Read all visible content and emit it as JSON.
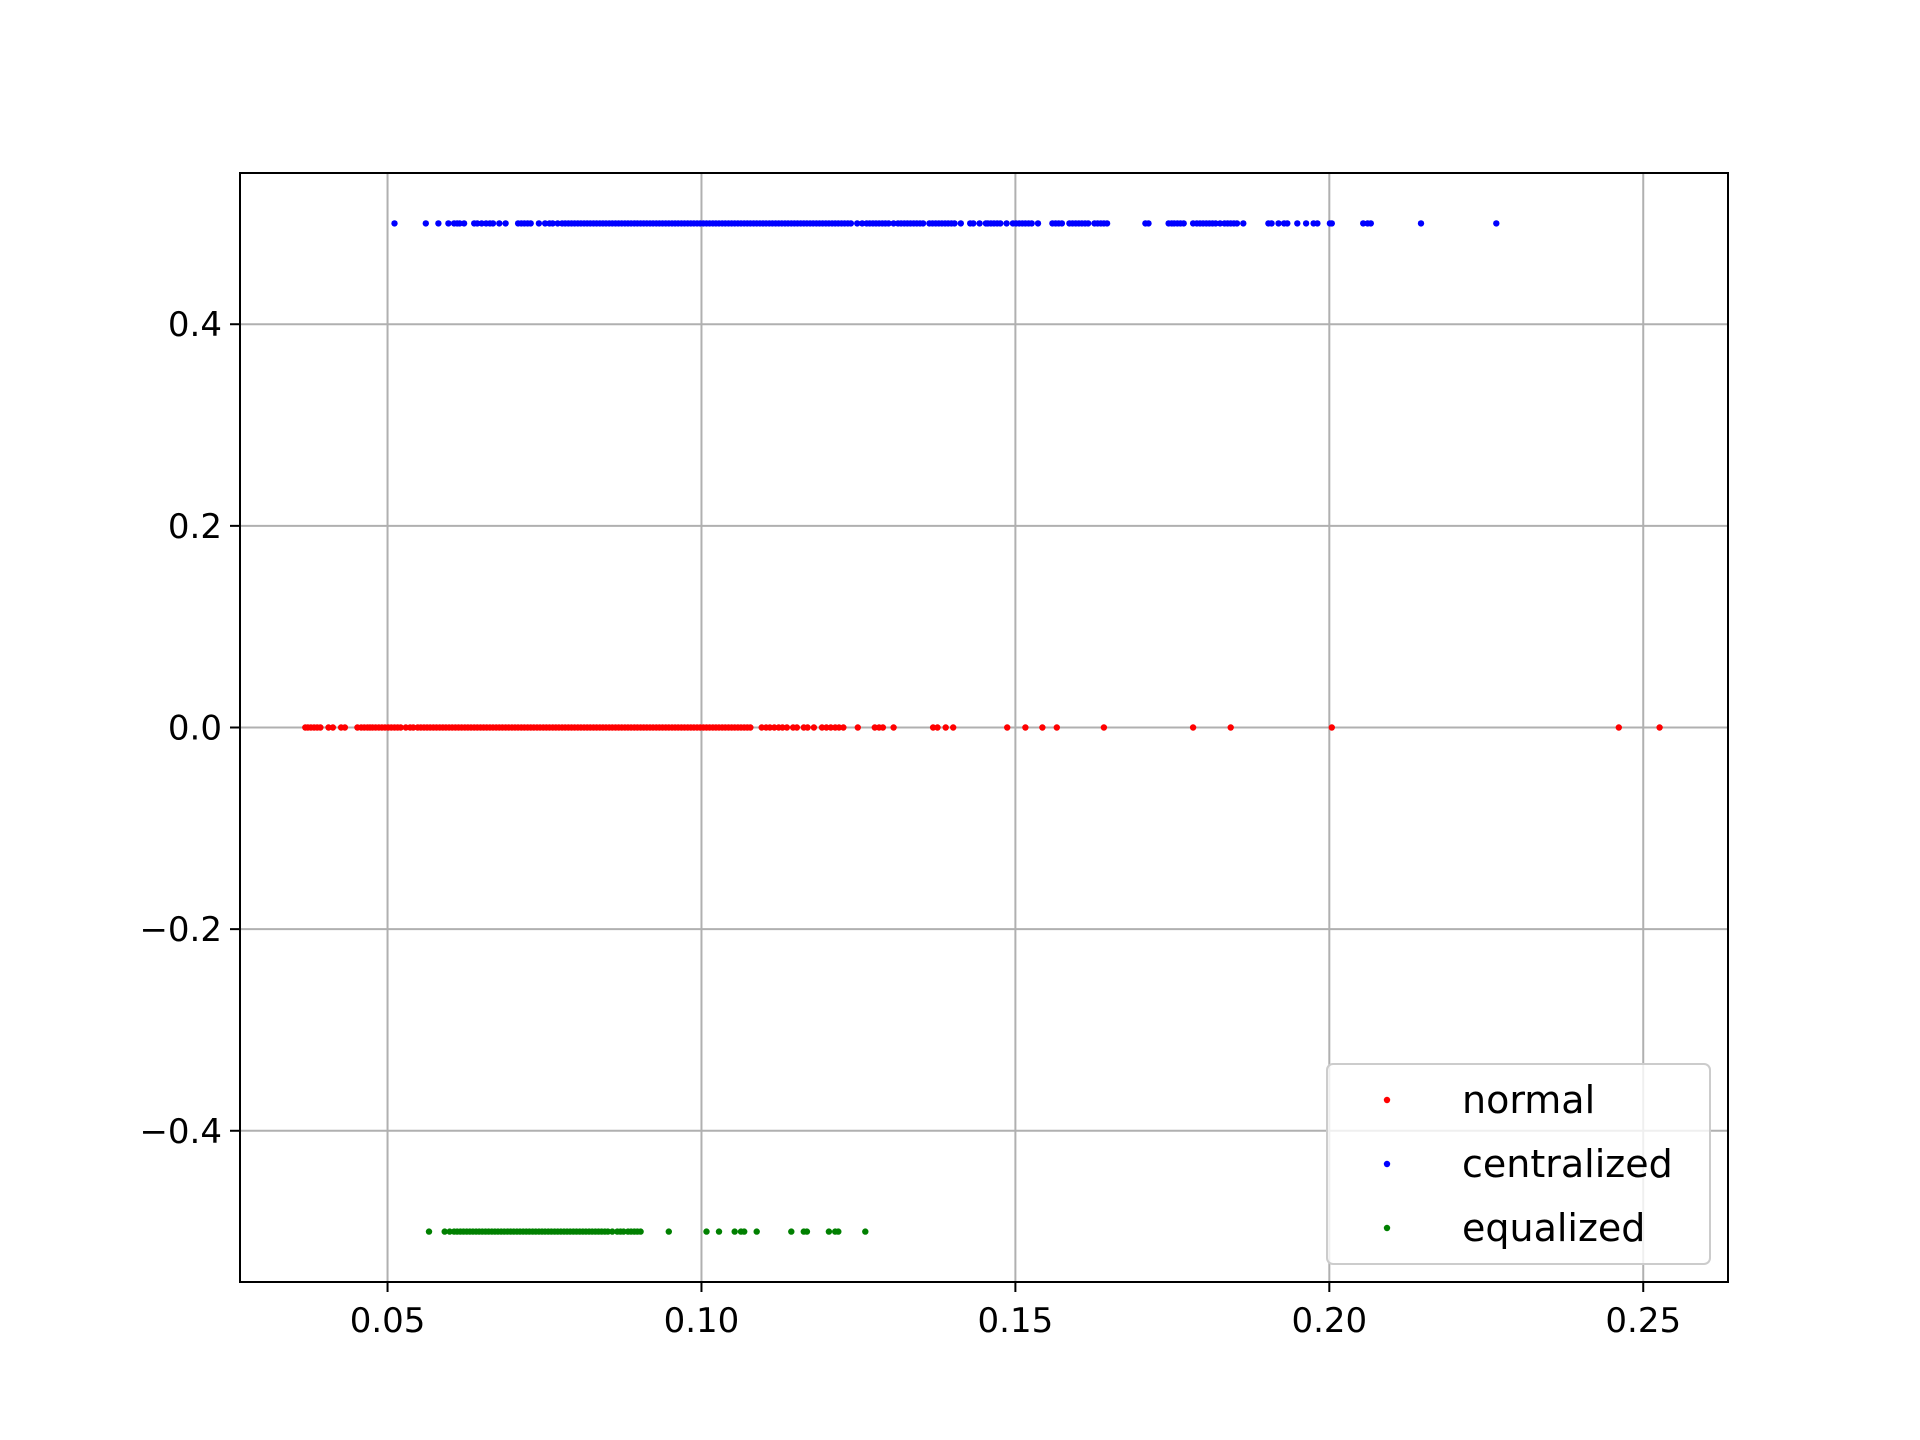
{
  "chart_data": {
    "type": "scatter",
    "title": "",
    "xlabel": "",
    "ylabel": "",
    "xlim": [
      0.0265,
      0.2635
    ],
    "ylim": [
      -0.55,
      0.55
    ],
    "xticks": [
      "0.05",
      "0.10",
      "0.15",
      "0.20",
      "0.25"
    ],
    "xtick_values": [
      0.05,
      0.1,
      0.15,
      0.2,
      0.25
    ],
    "yticks": [
      "0.4",
      "0.2",
      "0.0",
      "−0.2",
      "−0.4"
    ],
    "ytick_values": [
      0.4,
      0.2,
      0.0,
      -0.2,
      -0.4
    ],
    "grid": true,
    "legend_position": "lower-right",
    "series": [
      {
        "name": "normal",
        "color": "#ff0000",
        "y": 0.0,
        "x": [
          0.0369,
          0.0373,
          0.0378,
          0.0383,
          0.0388,
          0.0393,
          0.0406,
          0.0413,
          0.0426,
          0.0432,
          0.0452,
          0.0458,
          0.0463,
          0.0468,
          0.0472,
          0.0476,
          0.0481,
          0.0486,
          0.0491,
          0.0496,
          0.0501,
          0.0506,
          0.0511,
          0.0516,
          0.0521,
          0.0529,
          0.0536,
          0.0541,
          0.0548,
          0.0553,
          0.0558,
          0.0563,
          0.0568,
          0.0573,
          0.0578,
          0.0583,
          0.0588,
          0.0593,
          0.0598,
          0.0603,
          0.0608,
          0.0613,
          0.0618,
          0.0623,
          0.0628,
          0.0633,
          0.0638,
          0.0643,
          0.0648,
          0.0653,
          0.0658,
          0.0663,
          0.0668,
          0.0673,
          0.0678,
          0.0683,
          0.0688,
          0.0693,
          0.0698,
          0.0703,
          0.0708,
          0.0713,
          0.0718,
          0.0723,
          0.0728,
          0.0733,
          0.0738,
          0.0743,
          0.0748,
          0.0753,
          0.0758,
          0.0763,
          0.0768,
          0.0773,
          0.0778,
          0.0783,
          0.0788,
          0.0793,
          0.0798,
          0.0803,
          0.0808,
          0.0813,
          0.0818,
          0.0823,
          0.0828,
          0.0833,
          0.0838,
          0.0843,
          0.0848,
          0.0853,
          0.0858,
          0.0863,
          0.0868,
          0.0873,
          0.0878,
          0.0883,
          0.0888,
          0.0893,
          0.0898,
          0.0903,
          0.0908,
          0.0913,
          0.0918,
          0.0923,
          0.0928,
          0.0933,
          0.0938,
          0.0943,
          0.0948,
          0.0953,
          0.0958,
          0.0963,
          0.0968,
          0.0973,
          0.0978,
          0.0983,
          0.0988,
          0.0993,
          0.0998,
          0.1003,
          0.1008,
          0.1013,
          0.1018,
          0.1023,
          0.1028,
          0.1033,
          0.1038,
          0.1043,
          0.1048,
          0.1053,
          0.1058,
          0.1063,
          0.1068,
          0.1073,
          0.1078,
          0.1096,
          0.1103,
          0.1109,
          0.1116,
          0.1123,
          0.1129,
          0.1136,
          0.1146,
          0.1152,
          0.1163,
          0.1169,
          0.1179,
          0.1192,
          0.1199,
          0.1206,
          0.1213,
          0.1219,
          0.1226,
          0.1249,
          0.1276,
          0.1283,
          0.1289,
          0.1306,
          0.1369,
          0.1376,
          0.1389,
          0.1401,
          0.1487,
          0.1516,
          0.1543,
          0.1566,
          0.1641,
          0.1783,
          0.1843,
          0.2004,
          0.2461,
          0.2526
        ]
      },
      {
        "name": "centralized",
        "color": "#0000ff",
        "y": 0.5,
        "x": [
          0.0511,
          0.0561,
          0.0581,
          0.0597,
          0.0606,
          0.0611,
          0.0615,
          0.0622,
          0.0638,
          0.0643,
          0.065,
          0.0657,
          0.0663,
          0.0668,
          0.0678,
          0.0688,
          0.0708,
          0.0713,
          0.0718,
          0.0723,
          0.0728,
          0.0741,
          0.0751,
          0.0758,
          0.0763,
          0.0771,
          0.0778,
          0.0783,
          0.0788,
          0.0793,
          0.0798,
          0.0803,
          0.0808,
          0.0813,
          0.0818,
          0.0823,
          0.0828,
          0.0833,
          0.0838,
          0.0843,
          0.0848,
          0.0853,
          0.0858,
          0.0863,
          0.0868,
          0.0873,
          0.0878,
          0.0883,
          0.0888,
          0.0893,
          0.0898,
          0.0903,
          0.0908,
          0.0913,
          0.0918,
          0.0923,
          0.0928,
          0.0933,
          0.0938,
          0.0943,
          0.0948,
          0.0953,
          0.0958,
          0.0963,
          0.0968,
          0.0973,
          0.0978,
          0.0983,
          0.0988,
          0.0993,
          0.0998,
          0.1003,
          0.1008,
          0.1013,
          0.1018,
          0.1023,
          0.1028,
          0.1033,
          0.1038,
          0.1043,
          0.1048,
          0.1053,
          0.1058,
          0.1063,
          0.1068,
          0.1073,
          0.1078,
          0.1083,
          0.1088,
          0.1093,
          0.1098,
          0.1103,
          0.1108,
          0.1113,
          0.1118,
          0.1123,
          0.1128,
          0.1133,
          0.1138,
          0.1143,
          0.1148,
          0.1153,
          0.1158,
          0.1163,
          0.1168,
          0.1173,
          0.1178,
          0.1183,
          0.1188,
          0.1193,
          0.1198,
          0.1203,
          0.1208,
          0.1213,
          0.1218,
          0.1223,
          0.1228,
          0.1233,
          0.1238,
          0.1248,
          0.1256,
          0.1263,
          0.1268,
          0.1273,
          0.1278,
          0.1283,
          0.1288,
          0.1293,
          0.1298,
          0.1306,
          0.1313,
          0.1318,
          0.1323,
          0.1328,
          0.1333,
          0.1338,
          0.1343,
          0.1348,
          0.1353,
          0.1363,
          0.1368,
          0.1373,
          0.1378,
          0.1383,
          0.1388,
          0.1393,
          0.1398,
          0.1403,
          0.1413,
          0.1428,
          0.1433,
          0.1443,
          0.1453,
          0.1456,
          0.1461,
          0.1466,
          0.1471,
          0.1476,
          0.1486,
          0.1496,
          0.1501,
          0.1506,
          0.1511,
          0.1516,
          0.1521,
          0.1526,
          0.1536,
          0.1559,
          0.1564,
          0.1569,
          0.1574,
          0.1586,
          0.1591,
          0.1596,
          0.1601,
          0.1606,
          0.1611,
          0.1616,
          0.1626,
          0.1631,
          0.1636,
          0.1641,
          0.1646,
          0.1707,
          0.1712,
          0.1744,
          0.1749,
          0.1753,
          0.1758,
          0.1763,
          0.1768,
          0.1783,
          0.1789,
          0.1794,
          0.1799,
          0.1804,
          0.1809,
          0.1814,
          0.1819,
          0.1826,
          0.1833,
          0.1838,
          0.1843,
          0.1848,
          0.1853,
          0.1863,
          0.1903,
          0.1908,
          0.1919,
          0.1928,
          0.1933,
          0.1949,
          0.1963,
          0.1975,
          0.1981,
          0.2001,
          0.2004,
          0.2054,
          0.2061,
          0.2066,
          0.2146,
          0.2266
        ]
      },
      {
        "name": "equalized",
        "color": "#008000",
        "y": -0.5,
        "x": [
          0.0566,
          0.0591,
          0.0599,
          0.0606,
          0.0611,
          0.0616,
          0.0621,
          0.0626,
          0.0631,
          0.0636,
          0.0641,
          0.0646,
          0.0651,
          0.0656,
          0.0661,
          0.0666,
          0.0671,
          0.0676,
          0.0681,
          0.0686,
          0.0691,
          0.0696,
          0.0701,
          0.0706,
          0.0711,
          0.0716,
          0.0721,
          0.0726,
          0.0731,
          0.0736,
          0.0741,
          0.0746,
          0.0751,
          0.0756,
          0.0761,
          0.0766,
          0.0771,
          0.0776,
          0.0781,
          0.0786,
          0.0791,
          0.0796,
          0.0801,
          0.0806,
          0.0811,
          0.0816,
          0.0821,
          0.0826,
          0.0831,
          0.0836,
          0.0841,
          0.0846,
          0.0851,
          0.0858,
          0.0866,
          0.0871,
          0.0876,
          0.0883,
          0.0888,
          0.0893,
          0.0898,
          0.0903,
          0.0948,
          0.1008,
          0.1028,
          0.1053,
          0.1063,
          0.1068,
          0.1088,
          0.1143,
          0.1163,
          0.1168,
          0.1203,
          0.1213,
          0.1218,
          0.1261
        ]
      }
    ]
  }
}
